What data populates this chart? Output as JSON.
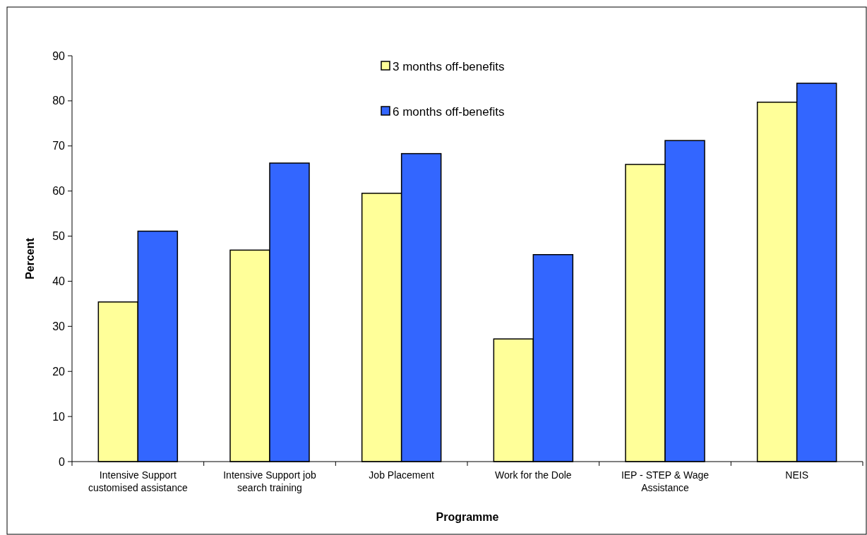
{
  "chart_data": {
    "type": "bar",
    "xlabel": "Programme",
    "ylabel": "Percent",
    "categories": [
      "Intensive Support customised assistance",
      "Intensive Support job search training",
      "Job Placement",
      "Work for the Dole",
      "IEP - STEP & Wage Assistance",
      "NEIS"
    ],
    "series": [
      {
        "name": "3 months off-benefits",
        "color": "#ffff99",
        "values": [
          35.4,
          46.9,
          59.5,
          27.2,
          65.9,
          79.7
        ]
      },
      {
        "name": "6 months off-benefits",
        "color": "#3366ff",
        "values": [
          51.1,
          66.2,
          68.3,
          45.9,
          71.2,
          83.9
        ]
      }
    ],
    "ylim": [
      0,
      90
    ],
    "yticks": [
      0,
      10,
      20,
      30,
      40,
      50,
      60,
      70,
      80,
      90
    ],
    "grid": false,
    "legend": "top"
  }
}
